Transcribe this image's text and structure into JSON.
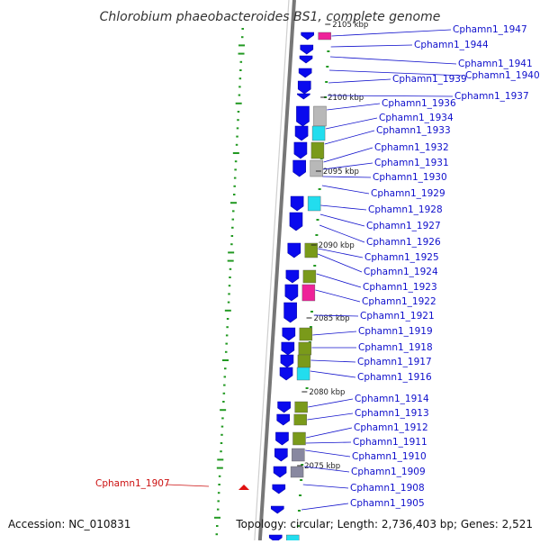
{
  "map": {
    "title": "Chlorobium phaeobacteroides BS1, complete genome",
    "accession": "Accession: NC_010831",
    "summary": "Topology: circular; Length: 2,736,403 bp; Genes: 2,521"
  },
  "ticks": [
    "2105 kbp",
    "2100 kbp",
    "2095 kbp",
    "2090 kbp",
    "2085 kbp",
    "2080 kbp",
    "2075 kbp"
  ],
  "genes": [
    "Cphamn1_1947",
    "Cphamn1_1944",
    "Cphamn1_1941",
    "Cphamn1_1940",
    "Cphamn1_1939",
    "Cphamn1_1937",
    "Cphamn1_1936",
    "Cphamn1_1934",
    "Cphamn1_1933",
    "Cphamn1_1932",
    "Cphamn1_1931",
    "Cphamn1_1930",
    "Cphamn1_1929",
    "Cphamn1_1928",
    "Cphamn1_1927",
    "Cphamn1_1926",
    "Cphamn1_1925",
    "Cphamn1_1924",
    "Cphamn1_1923",
    "Cphamn1_1922",
    "Cphamn1_1921",
    "Cphamn1_1919",
    "Cphamn1_1918",
    "Cphamn1_1917",
    "Cphamn1_1916",
    "Cphamn1_1914",
    "Cphamn1_1913",
    "Cphamn1_1912",
    "Cphamn1_1911",
    "Cphamn1_1910",
    "Cphamn1_1909",
    "Cphamn1_1908",
    "Cphamn1_1905"
  ],
  "left_gene": "Cphamn1_1907",
  "colors": {
    "forward": "#0a0aee",
    "cog_olive": "#7a9a1a",
    "cog_cyan": "#22ddee",
    "cog_magenta": "#ee2299",
    "cog_gray": "#b8b8b8",
    "cog_slate": "#8888a0",
    "label_blue": "#1010cc",
    "label_red": "#cc1010",
    "backbone": "#777777",
    "gc_tick": "#229922"
  }
}
